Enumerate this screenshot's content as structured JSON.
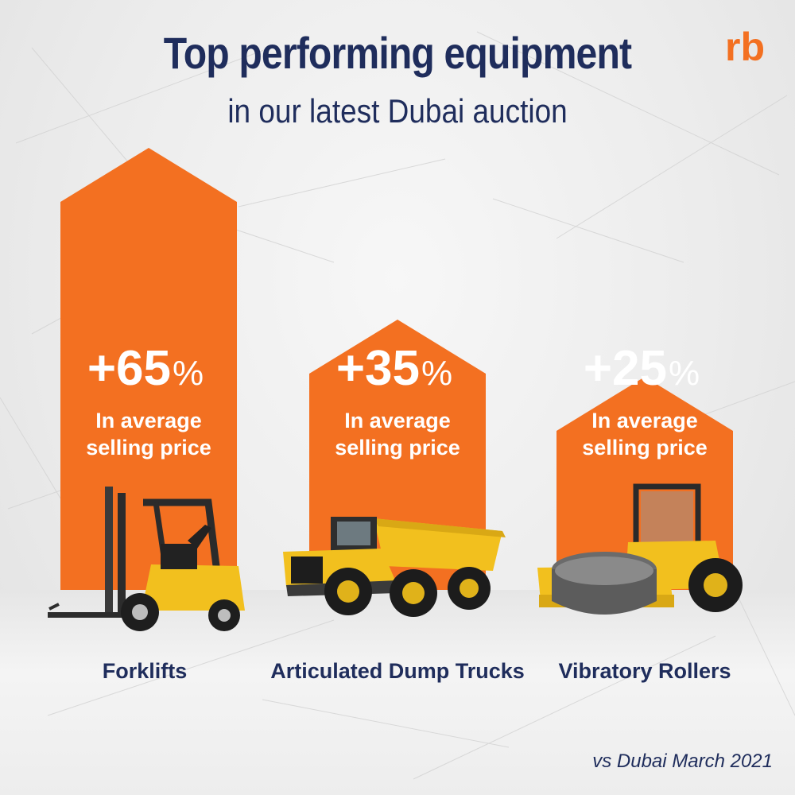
{
  "header": {
    "title": "Top performing equipment",
    "subtitle": "in our latest Dubai auction",
    "logo_text": "rb"
  },
  "footnote": "vs Dubai March 2021",
  "colors": {
    "accent": "#f37021",
    "navy": "#1f2d5c",
    "machine_yellow": "#f2c01e"
  },
  "chart_data": {
    "type": "bar",
    "categories": [
      "Forklifts",
      "Articulated Dump Trucks",
      "Vibratory Rollers"
    ],
    "values": [
      65,
      35,
      25
    ],
    "value_labels": [
      "+65",
      "+35",
      "+25"
    ],
    "unit": "%",
    "bar_caption_line1": "In average",
    "bar_caption_line2": "selling price",
    "icons": [
      "forklift-icon",
      "dump-truck-icon",
      "vibratory-roller-icon"
    ],
    "title": "Top performing equipment",
    "subtitle": "in our latest Dubai auction",
    "xlabel": "",
    "ylabel": "",
    "grid": false,
    "legend": "none"
  }
}
